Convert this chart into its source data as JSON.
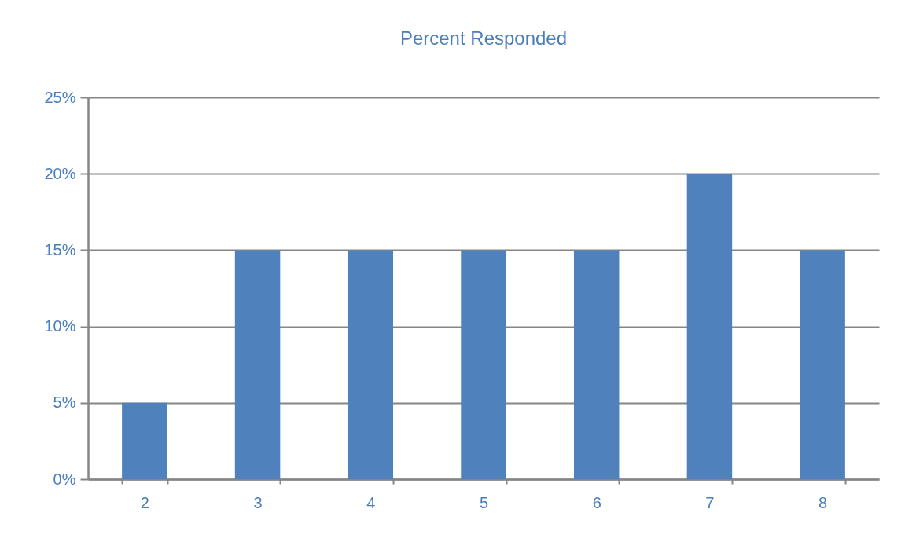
{
  "chart_data": {
    "type": "bar",
    "title": "Percent Responded",
    "categories": [
      "2",
      "3",
      "4",
      "5",
      "6",
      "7",
      "8"
    ],
    "values": [
      5,
      15,
      15,
      15,
      15,
      20,
      15
    ],
    "color": "#4f81bd",
    "ylim": [
      0,
      25
    ],
    "yticks": [
      {
        "value": 0,
        "label": "0%"
      },
      {
        "value": 5,
        "label": "5%"
      },
      {
        "value": 10,
        "label": "10%"
      },
      {
        "value": 15,
        "label": "15%"
      },
      {
        "value": 20,
        "label": "20%"
      },
      {
        "value": 25,
        "label": "25%"
      }
    ],
    "grid": "y"
  }
}
